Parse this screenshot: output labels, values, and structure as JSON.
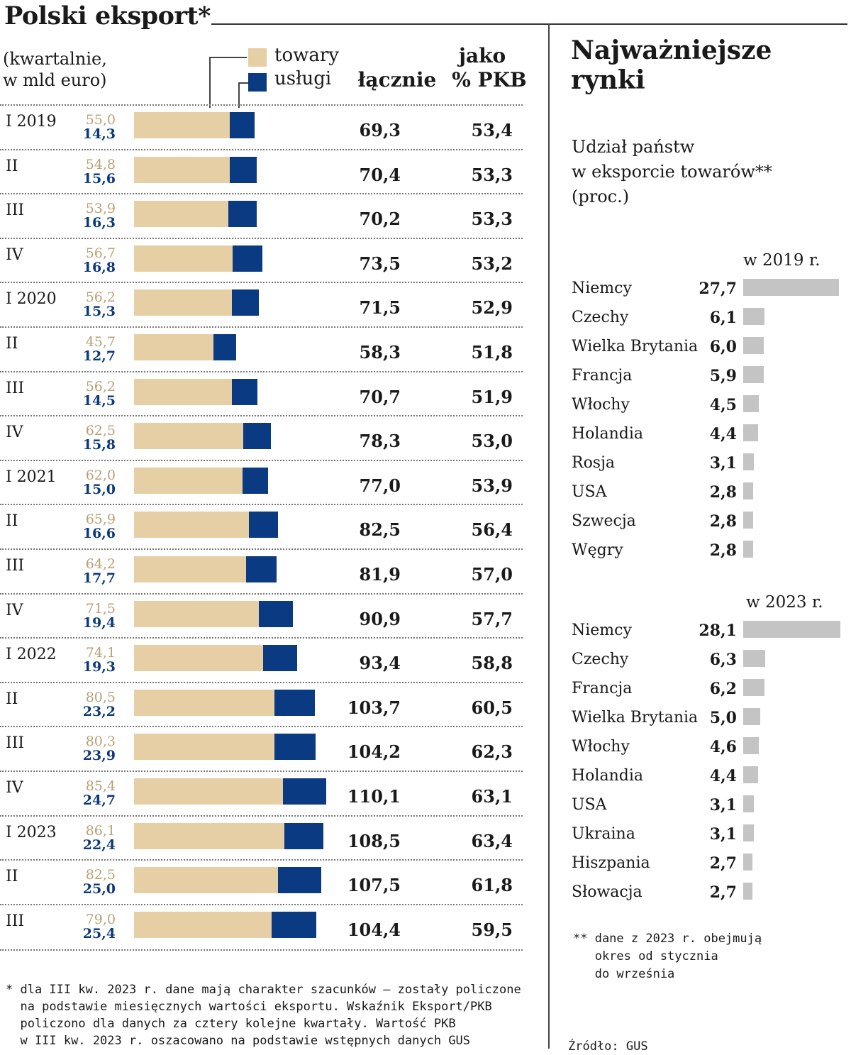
{
  "title": "Polski eksport*",
  "unit_note": "(kwartalnie,\nw mld euro)",
  "legend": {
    "goods": "towary",
    "services": "usługi"
  },
  "columns": {
    "total": "łącznie",
    "gdp_line1": "jako",
    "gdp_line2": "% PKB"
  },
  "colors": {
    "goods": "#e6cfa4",
    "services": "#0a3a82",
    "goods_text": "#b8a074",
    "services_text": "#0d3a7a",
    "market_bar": "#c4c4c4"
  },
  "chart_data": [
    {
      "type": "bar",
      "orientation": "horizontal-stacked",
      "title": "Polski eksport*",
      "units": "mld euro",
      "categories": [
        "I 2019",
        "II",
        "III",
        "IV",
        "I 2020",
        "II",
        "III",
        "IV",
        "I 2021",
        "II",
        "III",
        "IV",
        "I 2022",
        "II",
        "III",
        "IV",
        "I 2023",
        "II",
        "III"
      ],
      "series": [
        {
          "name": "towary",
          "values": [
            "55,0",
            "54,8",
            "53,9",
            "56,7",
            "56,2",
            "45,7",
            "56,2",
            "62,5",
            "62,0",
            "65,9",
            "64,2",
            "71,5",
            "74,1",
            "80,5",
            "80,3",
            "85,4",
            "86,1",
            "82,5",
            "79,0"
          ]
        },
        {
          "name": "usługi",
          "values": [
            "14,3",
            "15,6",
            "16,3",
            "16,8",
            "15,3",
            "12,7",
            "14,5",
            "15,8",
            "15,0",
            "16,6",
            "17,7",
            "19,4",
            "19,3",
            "23,2",
            "23,9",
            "24,7",
            "22,4",
            "25,0",
            "25,4"
          ]
        }
      ],
      "totals": [
        "69,3",
        "70,4",
        "70,2",
        "73,5",
        "71,5",
        "58,3",
        "70,7",
        "78,3",
        "77,0",
        "82,5",
        "81,9",
        "90,9",
        "93,4",
        "103,7",
        "104,2",
        "110,1",
        "108,5",
        "107,5",
        "104,4"
      ],
      "gdp_share": [
        "53,4",
        "53,3",
        "53,3",
        "53,2",
        "52,9",
        "51,8",
        "51,9",
        "53,0",
        "53,9",
        "56,4",
        "57,0",
        "57,7",
        "58,8",
        "60,5",
        "62,3",
        "63,1",
        "63,4",
        "61,8",
        "59,5"
      ],
      "xlim": [
        0,
        115
      ]
    },
    {
      "type": "bar",
      "orientation": "horizontal",
      "title": "w 2019 r.",
      "categories": [
        "Niemcy",
        "Czechy",
        "Wielka Brytania",
        "Francja",
        "Włochy",
        "Holandia",
        "Rosja",
        "USA",
        "Szwecja",
        "Węgry"
      ],
      "values": [
        "27,7",
        "6,1",
        "6,0",
        "5,9",
        "4,5",
        "4,4",
        "3,1",
        "2,8",
        "2,8",
        "2,8"
      ],
      "xlim": [
        0,
        28.1
      ]
    },
    {
      "type": "bar",
      "orientation": "horizontal",
      "title": "w 2023 r.",
      "categories": [
        "Niemcy",
        "Czechy",
        "Francja",
        "Wielka Brytania",
        "Włochy",
        "Holandia",
        "USA",
        "Ukraina",
        "Hiszpania",
        "Słowacja"
      ],
      "values": [
        "28,1",
        "6,3",
        "6,2",
        "5,0",
        "4,6",
        "4,4",
        "3,1",
        "3,1",
        "2,7",
        "2,7"
      ],
      "xlim": [
        0,
        28.1
      ]
    }
  ],
  "footnote": "* dla III kw. 2023 r. dane mają charakter szacunków – zostały policzone\n  na podstawie miesięcznych wartości eksportu. Wskaźnik Eksport/PKB\n  policzono dla danych za cztery kolejne kwartały. Wartość PKB\n  w III kw. 2023 r. oszacowano na podstawie wstępnych danych GUS",
  "side": {
    "title": "Najważniejsze\nrynki",
    "subtitle": "Udział państw\nw eksporcie towarów**\n(proc.)",
    "note": "** dane z 2023 r. obejmują\n   okres od stycznia\n   do września",
    "source": "Źródło: GUS"
  }
}
